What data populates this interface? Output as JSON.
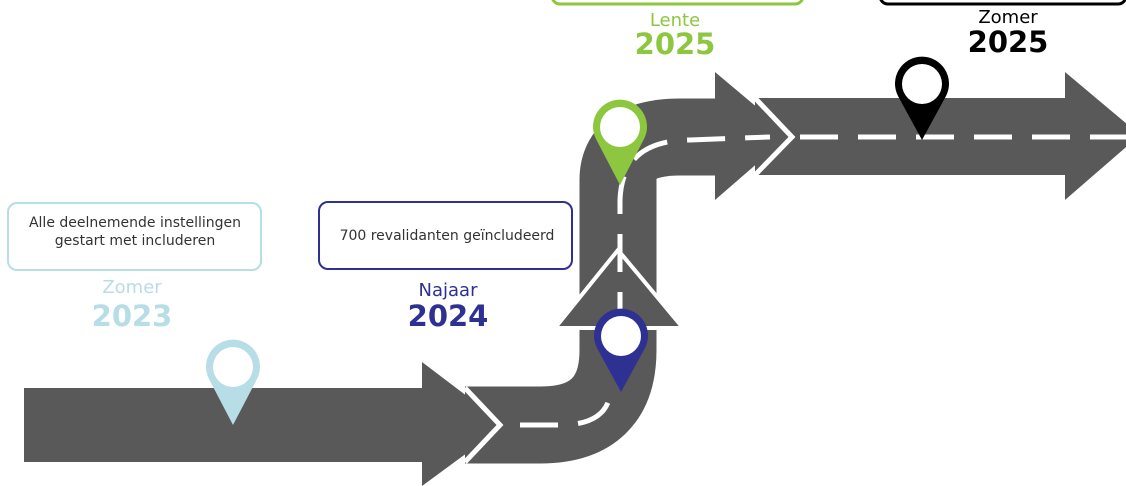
{
  "milestones": [
    {
      "season": "Zomer",
      "year": "2023",
      "description": [
        "Alle deelnemende instellingen",
        "gestart met includeren"
      ]
    },
    {
      "season": "Najaar",
      "year": "2024",
      "description": [
        "700 revalidanten geïncludeerd"
      ]
    },
    {
      "season": "Lente",
      "year": "2025"
    },
    {
      "season": "Zomer",
      "year": "2025"
    }
  ]
}
